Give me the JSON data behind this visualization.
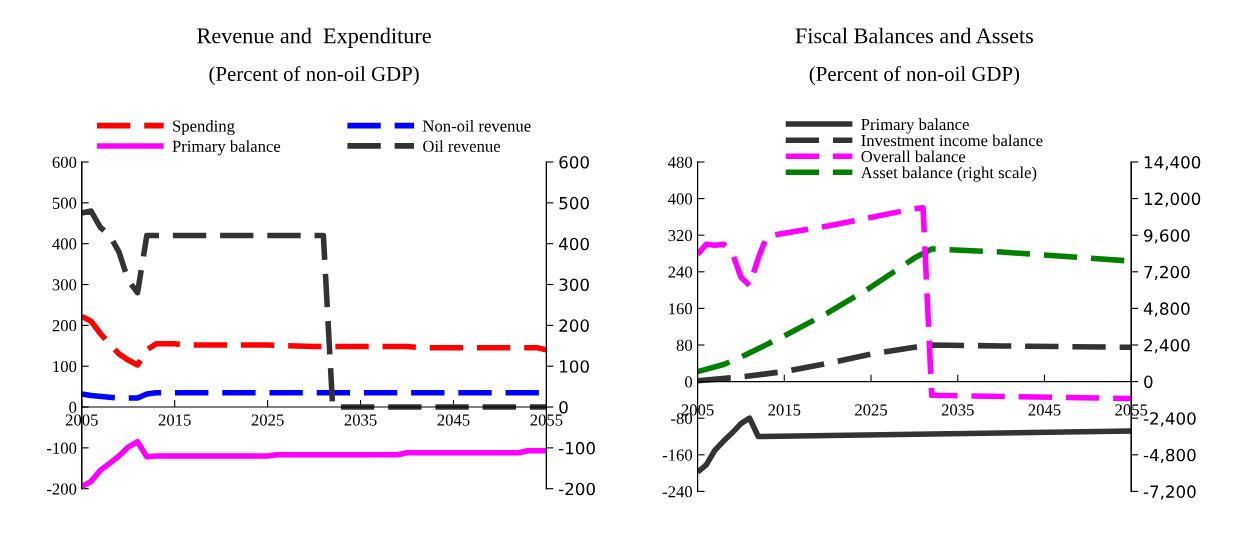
{
  "chart_data": [
    {
      "type": "line",
      "title": "Revenue and  Expenditure",
      "subtitle": "(Percent of non-oil GDP)",
      "xlim": [
        2005,
        2055
      ],
      "xticks": [
        2005,
        2015,
        2025,
        2035,
        2045,
        2055
      ],
      "ylim": [
        -200,
        600
      ],
      "yticks": [
        -200,
        -100,
        0,
        100,
        200,
        300,
        400,
        500,
        600
      ],
      "y2lim": [
        -200,
        600
      ],
      "y2ticks": [
        -200,
        -100,
        0,
        100,
        200,
        300,
        400,
        500,
        600
      ],
      "grid": false,
      "legend": "top",
      "series": [
        {
          "name": "Spending",
          "color": "#ff0000",
          "line_style": "dashed",
          "x": [
            2005,
            2006,
            2007,
            2008,
            2009,
            2010,
            2011,
            2012,
            2013,
            2015,
            2016,
            2025,
            2030,
            2040,
            2042,
            2054,
            2055
          ],
          "values": [
            222,
            210,
            180,
            155,
            130,
            115,
            103,
            140,
            155,
            155,
            152,
            152,
            148,
            148,
            145,
            145,
            140
          ]
        },
        {
          "name": "Non-oil revenue",
          "color": "#0000ff",
          "line_style": "dashed",
          "x": [
            2005,
            2006,
            2009,
            2010,
            2011,
            2012,
            2013,
            2055
          ],
          "values": [
            32,
            28,
            22,
            22,
            22,
            32,
            35,
            35
          ]
        },
        {
          "name": "Primary balance",
          "color": "#ff00ff",
          "line_style": "solid",
          "x": [
            2005,
            2006,
            2007,
            2008,
            2009,
            2010,
            2011,
            2012,
            2013,
            2025,
            2026,
            2039,
            2040,
            2052,
            2053,
            2055
          ],
          "values": [
            -195,
            -182,
            -155,
            -138,
            -120,
            -98,
            -85,
            -122,
            -120,
            -120,
            -117,
            -117,
            -112,
            -112,
            -107,
            -107
          ]
        },
        {
          "name": "Oil revenue",
          "color": "#333333",
          "line_style": "dashed",
          "x": [
            2005,
            2006,
            2007,
            2008,
            2009,
            2010,
            2011,
            2012,
            2031,
            2032,
            2055
          ],
          "values": [
            475,
            480,
            440,
            420,
            380,
            310,
            280,
            420,
            420,
            0,
            0
          ]
        }
      ]
    },
    {
      "type": "line",
      "title": "Fiscal Balances and Assets",
      "subtitle": "(Percent of non-oil GDP)",
      "xlim": [
        2005,
        2055
      ],
      "xticks": [
        2005,
        2015,
        2025,
        2035,
        2045,
        2055
      ],
      "ylim": [
        -240,
        480
      ],
      "yticks": [
        -240,
        -160,
        -80,
        0,
        80,
        160,
        240,
        320,
        400,
        480
      ],
      "y2lim": [
        -7200,
        14400
      ],
      "y2ticks": [
        {
          "value": -7200,
          "label": "-7,200"
        },
        {
          "value": -4800,
          "label": "-4,800"
        },
        {
          "value": -2400,
          "label": "-2,400"
        },
        0,
        {
          "value": 2400,
          "label": "2,400"
        },
        {
          "value": 4800,
          "label": "4,800"
        },
        {
          "value": 7200,
          "label": "7,200"
        },
        {
          "value": 9600,
          "label": "9,600"
        },
        {
          "value": 12000,
          "label": "12,000"
        },
        {
          "value": 14400,
          "label": "14,400"
        }
      ],
      "grid": false,
      "legend": "top",
      "series": [
        {
          "name": "Primary balance",
          "color": "#333333",
          "line_style": "solid",
          "x": [
            2005,
            2006,
            2007,
            2008,
            2009,
            2010,
            2011,
            2012,
            2055
          ],
          "values": [
            -198,
            -182,
            -150,
            -130,
            -112,
            -92,
            -80,
            -120,
            -108
          ]
        },
        {
          "name": "Investment income balance",
          "color": "#333333",
          "line_style": "dashed",
          "x": [
            2005,
            2010,
            2015,
            2020,
            2025,
            2030,
            2032,
            2040,
            2055
          ],
          "values": [
            2,
            10,
            22,
            40,
            60,
            75,
            80,
            78,
            75
          ]
        },
        {
          "name": "Overall balance",
          "color": "#ff00ff",
          "line_style": "dashed",
          "x": [
            2005,
            2006,
            2007,
            2008,
            2009,
            2010,
            2011,
            2012,
            2013,
            2020,
            2030,
            2031,
            2032,
            2055
          ],
          "values": [
            278,
            300,
            298,
            300,
            282,
            228,
            210,
            270,
            318,
            340,
            378,
            380,
            -30,
            -37
          ]
        },
        {
          "name": "Asset balance (right scale)",
          "color": "#008000",
          "line_style": "dashed",
          "axis": "y2",
          "x": [
            2005,
            2008,
            2010,
            2015,
            2020,
            2025,
            2030,
            2032,
            2040,
            2055
          ],
          "values": [
            650,
            1120,
            1600,
            3000,
            4500,
            6200,
            8100,
            8700,
            8500,
            7900
          ]
        }
      ]
    }
  ]
}
